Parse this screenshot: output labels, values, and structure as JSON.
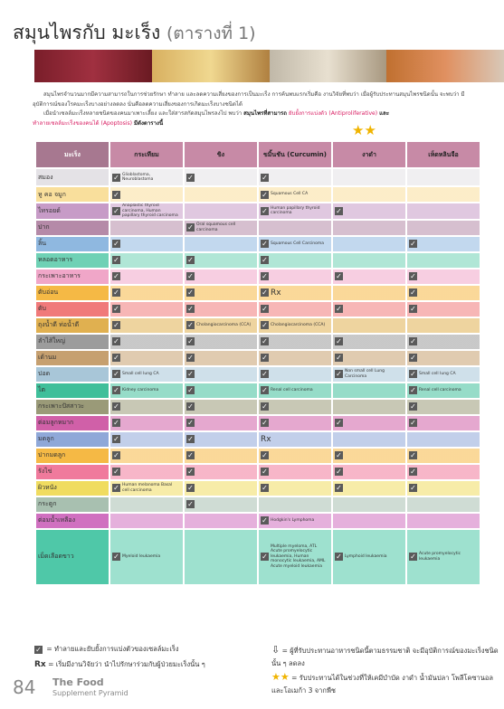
{
  "title": "สมุนไพรกับ มะเร็ง",
  "title_sub": "(ตารางที่ 1)",
  "intro": {
    "p1": "สมุนไพรจำนวนมากมีความสามารถในการช่วยรักษา ทำลาย และลดความเสี่ยงของการเป็นมะเร็ง การค้นพบแรกเริ่มคือ งานวิจัยที่พบว่า เมื่อผู้รับประทานสมุนไพรชนิดนั้น จะพบว่า มีอุบัติการณ์ของโรคมะเร็งบางอย่างลดลง นั่นคือลดความเสี่ยงของการเกิดมะเร็งบางชนิดได้",
    "p2a": "เมื่อนำเซลล์มะเร็งหลายชนิดของคนมาเพาะเลี้ยง และใส่สารสกัดสมุนไพรลงไป พบว่า",
    "p2b": "สมุนไพรที่สามารถ",
    "p2c": "ยับยั้งการแบ่งตัว (Antiproliferative)",
    "p2d": "และ",
    "p2e": "ทำลายเซลล์มะเร็งของคนได้ (Apoptosis)",
    "p2f": "มีดังตารางนี้"
  },
  "headers": [
    "มะเร็ง",
    "กระเทียม",
    "ขิง",
    "ขมิ้นชัน (Curcumin)",
    "งาดำ",
    "เห็ดหลินจือ"
  ],
  "icons": {
    "check": "checkbox-checked-icon",
    "star": "star-icon",
    "down": "down-arrow-icon"
  },
  "rows": [
    {
      "organ": "สมอง",
      "color": "#e4e2e6",
      "cells": [
        {
          "c": true,
          "n": "Glioblastoma, Neuroblastoma"
        },
        {
          "c": true
        },
        {
          "c": true
        },
        {},
        {}
      ]
    },
    {
      "organ": "หู คอ จมูก",
      "color": "#f9df9c",
      "cells": [
        {
          "c": true
        },
        {},
        {
          "c": true,
          "n": "Squamous Cell CA"
        },
        {},
        {}
      ]
    },
    {
      "organ": "ไทรอยด์",
      "color": "#c79bc7",
      "cells": [
        {
          "c": true,
          "n": "Anaplastic thyroid carcinoma, Human papillary thyroid carcinoma"
        },
        {},
        {
          "c": true,
          "n": "Human papillary thyroid carcinoma"
        },
        {
          "c": true
        },
        {}
      ]
    },
    {
      "organ": "ปาก",
      "color": "#b58aa8",
      "cells": [
        {},
        {
          "c": true,
          "n": "Oral squamous cell carcinoma"
        },
        {},
        {},
        {}
      ]
    },
    {
      "organ": "ลิ้น",
      "color": "#8fb8e0",
      "cells": [
        {
          "c": true
        },
        {},
        {
          "c": true,
          "n": "Squamous Cell Carcinoma"
        },
        {},
        {
          "c": true
        }
      ]
    },
    {
      "organ": "หลอดอาหาร",
      "color": "#6fd1b5",
      "cells": [
        {
          "c": true
        },
        {
          "c": true
        },
        {
          "c": true
        },
        {},
        {}
      ]
    },
    {
      "organ": "กระเพาะอาหาร",
      "color": "#f0a6c8",
      "cells": [
        {
          "c": true
        },
        {
          "c": true
        },
        {
          "c": true
        },
        {
          "c": true
        },
        {
          "c": true
        }
      ]
    },
    {
      "organ": "ตับอ่อน",
      "color": "#f5b945",
      "cells": [
        {
          "c": true
        },
        {
          "c": true
        },
        {
          "c": true,
          "r": "Rx"
        },
        {},
        {
          "c": true
        }
      ]
    },
    {
      "organ": "ตับ",
      "color": "#f07a7a",
      "cells": [
        {
          "c": true
        },
        {
          "c": true
        },
        {
          "c": true
        },
        {
          "c": true
        },
        {
          "c": true
        }
      ]
    },
    {
      "organ": "ถุงน้ำดี ท่อน้ำดี",
      "color": "#e0b050",
      "cells": [
        {
          "c": true
        },
        {
          "c": true,
          "n": "Cholangiocarcinoma (CCA)"
        },
        {
          "c": true,
          "n": "Cholangiocarcinoma (CCA)"
        },
        {},
        {}
      ]
    },
    {
      "organ": "ลำไส้ใหญ่",
      "color": "#9c9c9c",
      "cells": [
        {
          "c": true
        },
        {
          "c": true
        },
        {
          "c": true
        },
        {
          "c": true
        },
        {
          "c": true
        }
      ]
    },
    {
      "organ": "เต้านม",
      "color": "#c6a070",
      "cells": [
        {
          "c": true
        },
        {
          "c": true
        },
        {
          "c": true
        },
        {
          "c": true
        },
        {
          "c": true
        }
      ]
    },
    {
      "organ": "ปอด",
      "color": "#a8c6d8",
      "cells": [
        {
          "c": true,
          "n": "Small cell lung CA"
        },
        {
          "c": true
        },
        {
          "c": true
        },
        {
          "c": true,
          "n": "Non small cell Lung Carcinoma"
        },
        {
          "c": true,
          "n": "Small cell lung CA"
        }
      ]
    },
    {
      "organ": "ไต",
      "color": "#3fbf9a",
      "cells": [
        {
          "c": true,
          "n": "Kidney carcinoma"
        },
        {
          "c": true
        },
        {
          "c": true,
          "n": "Renal cell carcinoma"
        },
        {},
        {
          "c": true,
          "n": "Renal cell carcinoma"
        }
      ]
    },
    {
      "organ": "กระเพาะปัสสาวะ",
      "color": "#9a9a78",
      "cells": [
        {
          "c": true
        },
        {
          "c": true
        },
        {
          "c": true
        },
        {},
        {
          "c": true
        }
      ]
    },
    {
      "organ": "ต่อมลูกหมาก",
      "color": "#d060a8",
      "cells": [
        {
          "c": true
        },
        {
          "c": true
        },
        {
          "c": true
        },
        {
          "c": true
        },
        {
          "c": true
        }
      ]
    },
    {
      "organ": "มดลูก",
      "color": "#8fa8d8",
      "cells": [
        {
          "c": true
        },
        {
          "c": true
        },
        {
          "r": "Rx"
        },
        {},
        {}
      ]
    },
    {
      "organ": "ปากมดลูก",
      "color": "#f5b945",
      "cells": [
        {
          "c": true
        },
        {
          "c": true
        },
        {
          "c": true
        },
        {
          "c": true
        },
        {
          "c": true
        }
      ]
    },
    {
      "organ": "รังไข่",
      "color": "#f07a9c",
      "cells": [
        {
          "c": true
        },
        {
          "c": true
        },
        {
          "c": true
        },
        {
          "c": true
        },
        {
          "c": true
        }
      ]
    },
    {
      "organ": "ผิวหนัง",
      "color": "#f0dc60",
      "cells": [
        {
          "c": true,
          "n": "Human melanoma Basal cell carcinoma"
        },
        {
          "c": true
        },
        {
          "c": true
        },
        {
          "c": true
        },
        {
          "c": true
        }
      ]
    },
    {
      "organ": "กระดูก",
      "color": "#a8c0b0",
      "cells": [
        {},
        {
          "c": true
        },
        {},
        {},
        {}
      ]
    },
    {
      "organ": "ต่อมน้ำเหลือง",
      "color": "#d070c0",
      "cells": [
        {},
        {},
        {
          "c": true,
          "n": "Hodgkin's Lymphoma"
        },
        {},
        {}
      ]
    },
    {
      "organ": "เม็ดเลือดขาว",
      "color": "#4fc8a8",
      "cells": [
        {
          "c": true,
          "n": "Myeloid leukaemia"
        },
        {},
        {
          "c": true,
          "n": "Multiple myeloma, ATL Acute promyelocytic leukaemia, Human monocytic leukaemia, AML Acute myeloid leukaemia"
        },
        {
          "c": true,
          "n": "Lymphoid leukaemia"
        },
        {
          "c": true,
          "n": "Acute promyelocytic leukaemia"
        }
      ]
    }
  ],
  "legend": {
    "check": "= ทำลายและยับยั้งการแบ่งตัวของเซลล์มะเร็ง",
    "rx_mark": "Rx",
    "rx": "= เริ่มมีงานวิจัยว่า นำไปรักษาร่วมกับผู้ป่วยมะเร็งนั้น ๆ",
    "down": "= ผู้ที่รับประทานอาหารชนิดนี้ตามธรรมชาติ จะมีอุบัติการณ์ของมะเร็งชนิดนั้น ๆ ลดลง",
    "star": "= รับประทานได้ในช่วงที่ให้เคมีบำบัด งาดำ น้ำมันปลา โพลีโคซานอล และโอเมก้า 3 จากพืช"
  },
  "footer": {
    "page": "84",
    "brand": "The Food",
    "brand_sub": "Supplement Pyramid"
  },
  "colors": {
    "header_bg": "#c78aa6",
    "organ_header": "#a77890",
    "check_bg": "#5a5a5a",
    "accent": "#d81b60",
    "star": "#f0b400"
  }
}
